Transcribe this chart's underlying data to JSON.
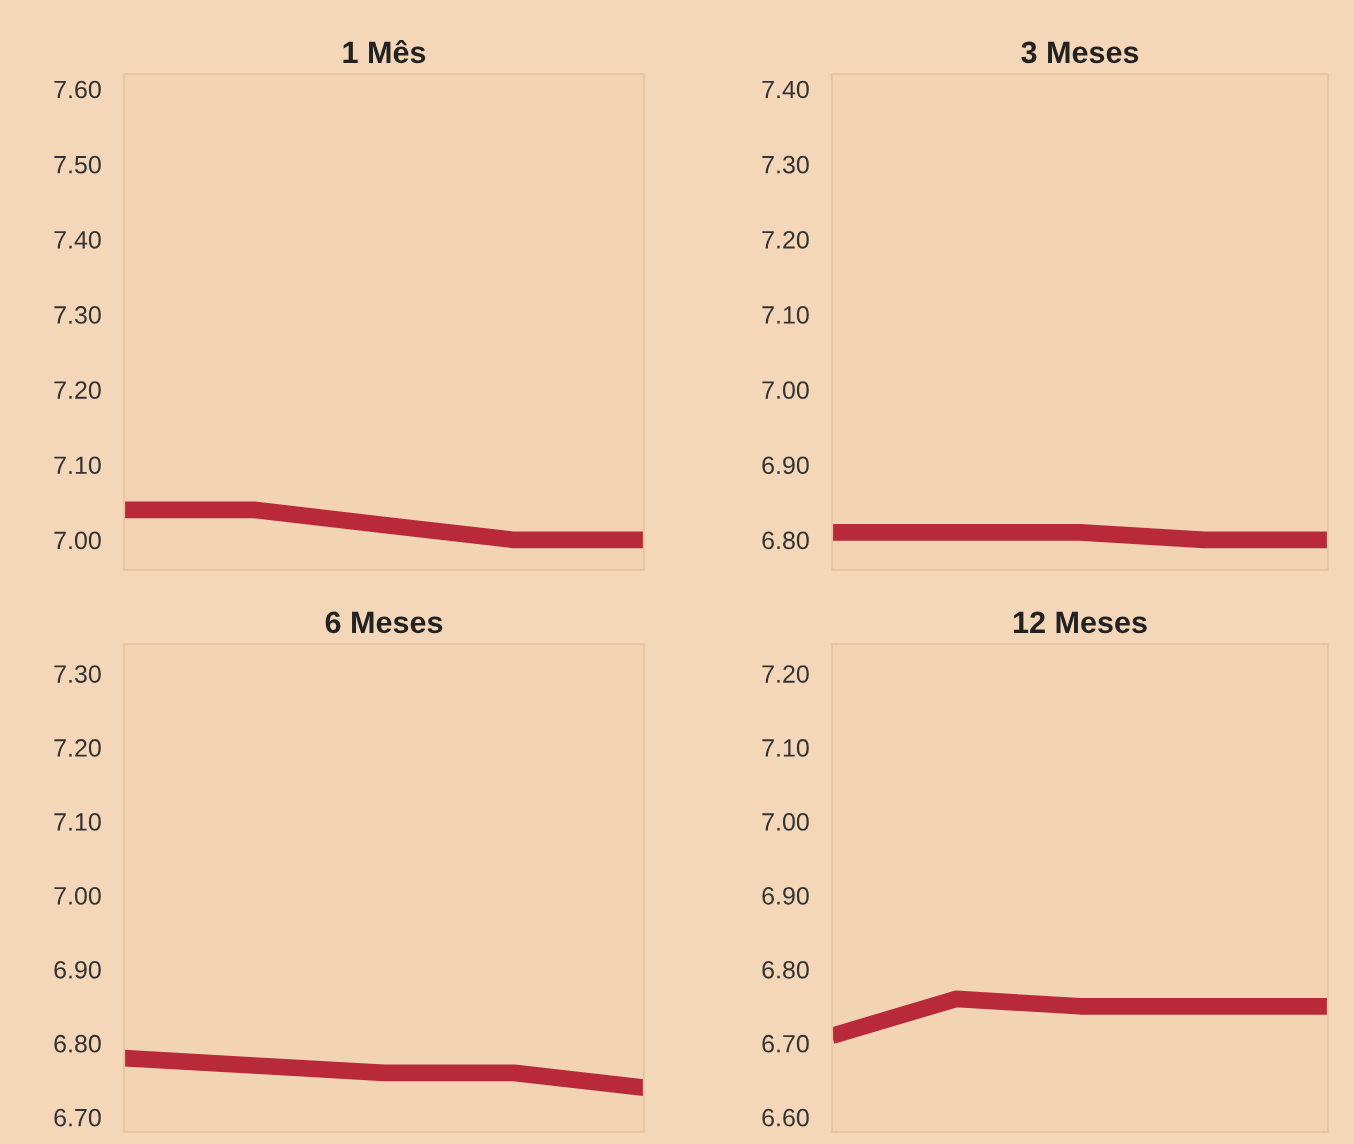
{
  "chart_data": [
    {
      "type": "line",
      "title": "1 Mês",
      "categories": [
        null,
        null,
        null,
        null,
        null
      ],
      "series": [
        {
          "color": "#b82a3a",
          "values": [
            7.04,
            7.04,
            7.02,
            7.0,
            7.0
          ]
        }
      ],
      "ylim": [
        6.96,
        7.62
      ],
      "yticks": [
        {
          "value": 7.6,
          "label": "7.60"
        },
        {
          "value": 7.5,
          "label": "7.50"
        },
        {
          "value": 7.4,
          "label": "7.40"
        },
        {
          "value": 7.3,
          "label": "7.30"
        },
        {
          "value": 7.2,
          "label": "7.20"
        },
        {
          "value": 7.1,
          "label": "7.10"
        },
        {
          "value": 7.0,
          "label": "7.00"
        }
      ],
      "grid": false,
      "tick_labels": "y"
    },
    {
      "type": "line",
      "title": "3 Meses",
      "categories": [
        null,
        null,
        null,
        null,
        null
      ],
      "series": [
        {
          "color": "#b82a3a",
          "values": [
            6.81,
            6.81,
            6.81,
            6.8,
            6.8
          ]
        }
      ],
      "ylim": [
        6.76,
        7.42
      ],
      "yticks": [
        {
          "value": 7.4,
          "label": "7.40"
        },
        {
          "value": 7.3,
          "label": "7.30"
        },
        {
          "value": 7.2,
          "label": "7.20"
        },
        {
          "value": 7.1,
          "label": "7.10"
        },
        {
          "value": 7.0,
          "label": "7.00"
        },
        {
          "value": 6.9,
          "label": "6.90"
        },
        {
          "value": 6.8,
          "label": "6.80"
        }
      ],
      "grid": false,
      "tick_labels": "y"
    },
    {
      "type": "line",
      "title": "6 Meses",
      "categories": [
        null,
        null,
        null,
        null,
        null
      ],
      "series": [
        {
          "color": "#b82a3a",
          "values": [
            6.78,
            6.77,
            6.76,
            6.76,
            6.74
          ]
        }
      ],
      "ylim": [
        6.68,
        7.34
      ],
      "yticks": [
        {
          "value": 7.3,
          "label": "7.30"
        },
        {
          "value": 7.2,
          "label": "7.20"
        },
        {
          "value": 7.1,
          "label": "7.10"
        },
        {
          "value": 7.0,
          "label": "7.00"
        },
        {
          "value": 6.9,
          "label": "6.90"
        },
        {
          "value": 6.8,
          "label": "6.80"
        },
        {
          "value": 6.7,
          "label": "6.70"
        }
      ],
      "grid": false,
      "tick_labels": "y"
    },
    {
      "type": "line",
      "title": "12 Meses",
      "categories": [
        null,
        null,
        null,
        null,
        null
      ],
      "series": [
        {
          "color": "#b82a3a",
          "values": [
            6.71,
            6.76,
            6.75,
            6.75,
            6.75
          ]
        }
      ],
      "ylim": [
        6.58,
        7.24
      ],
      "yticks": [
        {
          "value": 7.2,
          "label": "7.20"
        },
        {
          "value": 7.1,
          "label": "7.10"
        },
        {
          "value": 7.0,
          "label": "7.00"
        },
        {
          "value": 6.9,
          "label": "6.90"
        },
        {
          "value": 6.8,
          "label": "6.80"
        },
        {
          "value": 6.7,
          "label": "6.70"
        },
        {
          "value": 6.6,
          "label": "6.60"
        }
      ],
      "grid": false,
      "tick_labels": "y"
    }
  ]
}
